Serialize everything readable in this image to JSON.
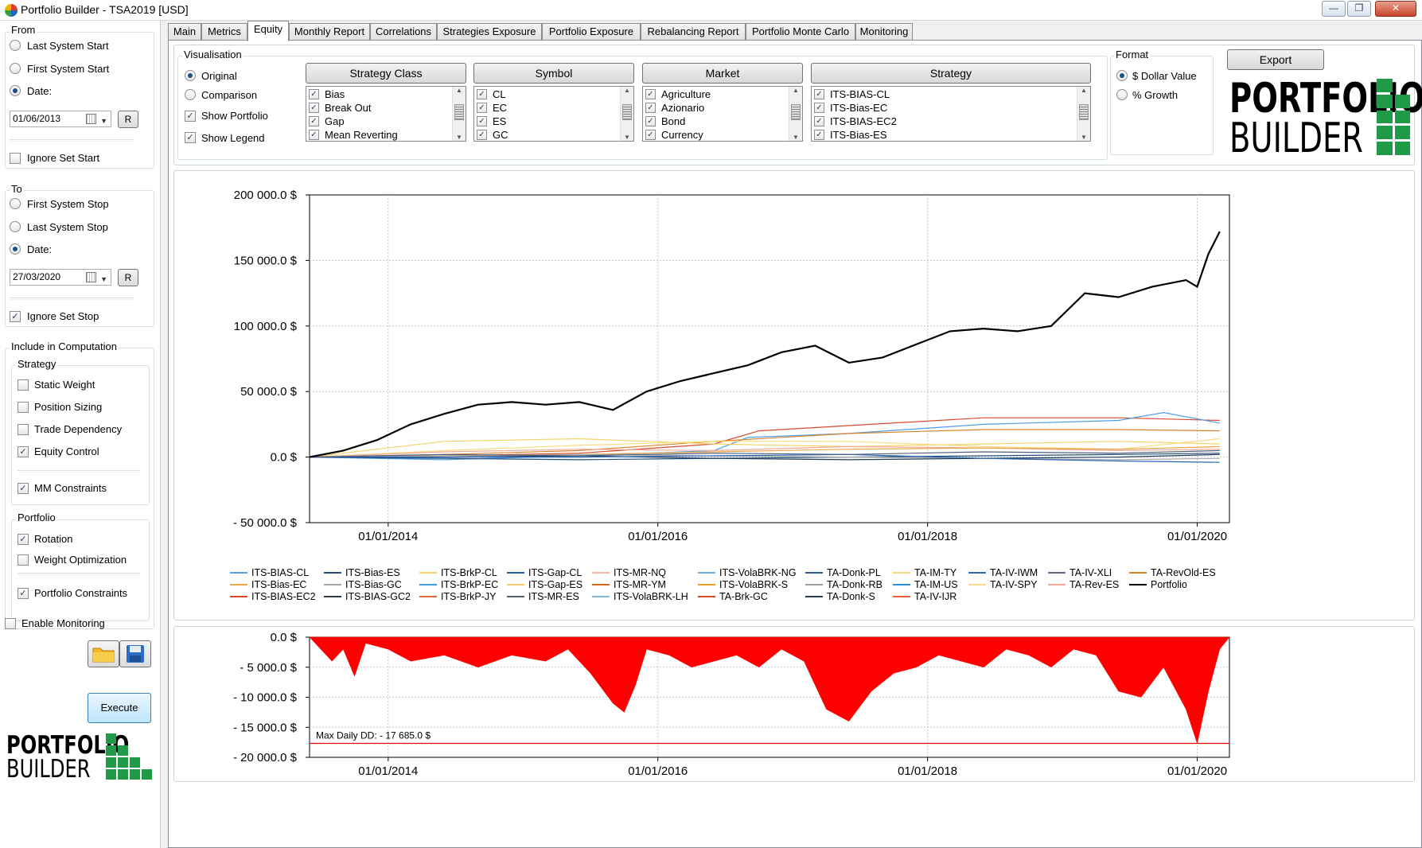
{
  "window": {
    "title": "Portfolio Builder - TSA2019 [USD]",
    "controls": {
      "minimize": "—",
      "maximize": "❐",
      "close": "✕"
    }
  },
  "tabs": [
    {
      "label": "Main"
    },
    {
      "label": "Metrics"
    },
    {
      "label": "Equity",
      "active": true
    },
    {
      "label": "Monthly Report"
    },
    {
      "label": "Correlations"
    },
    {
      "label": "Strategies Exposure"
    },
    {
      "label": "Portfolio Exposure"
    },
    {
      "label": "Rebalancing Report"
    },
    {
      "label": "Portfolio Monte Carlo"
    },
    {
      "label": "Monitoring"
    }
  ],
  "left": {
    "from": {
      "label": "From",
      "last_system_start": "Last System Start",
      "first_system_start": "First System Start",
      "date_label": "Date:",
      "date_value": "01/06/2013",
      "r_button": "R",
      "ignore_set_start": "Ignore Set Start"
    },
    "to": {
      "label": "To",
      "first_system_stop": "First System Stop",
      "last_system_stop": "Last System Stop",
      "date_label": "Date:",
      "date_value": "27/03/2020",
      "r_button": "R",
      "ignore_set_stop": "Ignore Set Stop"
    },
    "include": {
      "label": "Include in Computation",
      "strategy_label": "Strategy",
      "static_weight": "Static Weight",
      "position_sizing": "Position Sizing",
      "trade_dependency": "Trade Dependency",
      "equity_control": "Equity Control",
      "mm_constraints": "MM Constraints",
      "portfolio_label": "Portfolio",
      "rotation": "Rotation",
      "weight_optimization": "Weight Optimization",
      "portfolio_constraints": "Portfolio Constraints"
    },
    "enable_monitoring": "Enable Monitoring",
    "execute": "Execute"
  },
  "logo": {
    "line1": "PORTFOLIO",
    "line2": "BUILDER"
  },
  "visualisation": {
    "label": "Visualisation",
    "original": "Original",
    "comparison": "Comparison",
    "show_portfolio": "Show Portfolio",
    "show_legend": "Show Legend"
  },
  "filters": {
    "strategy_class": {
      "header": "Strategy Class",
      "items": [
        "Bias",
        "Break Out",
        "Gap",
        "Mean Reverting"
      ]
    },
    "symbol": {
      "header": "Symbol",
      "items": [
        "CL",
        "EC",
        "ES",
        "GC"
      ]
    },
    "market": {
      "header": "Market",
      "items": [
        "Agriculture",
        "Azionario",
        "Bond",
        "Currency"
      ]
    },
    "strategy": {
      "header": "Strategy",
      "items": [
        "ITS-BIAS-CL",
        "ITS-Bias-EC",
        "ITS-BIAS-EC2",
        "ITS-Bias-ES"
      ]
    }
  },
  "format": {
    "label": "Format",
    "dollar_value": "$ Dollar Value",
    "growth": "% Growth"
  },
  "export": "Export",
  "colors": {
    "portfolio": "#000000",
    "drawdown": "#ff0000",
    "accent_green": "#1f9b48"
  },
  "chart_data": [
    {
      "type": "line",
      "title": "",
      "xlabel": "",
      "ylabel": "",
      "x_ticks": [
        "01/01/2014",
        "01/01/2016",
        "01/01/2018",
        "01/01/2020"
      ],
      "y_ticks": [
        "200 000.0 $",
        "150 000.0 $",
        "100 000.0 $",
        "50 000.0 $",
        "0.0 $",
        "- 50 000.0 $"
      ],
      "ylim": [
        -50000,
        200000
      ],
      "xlim": [
        "2013-06-01",
        "2020-03-27"
      ],
      "grid": true,
      "legend_position": "bottom",
      "legend": [
        {
          "name": "ITS-BIAS-CL",
          "color": "#4f9de6"
        },
        {
          "name": "ITS-Bias-ES",
          "color": "#1f4e79"
        },
        {
          "name": "ITS-BrkP-CL",
          "color": "#f5d36a"
        },
        {
          "name": "ITS-Gap-CL",
          "color": "#1d5fa8"
        },
        {
          "name": "ITS-MR-NQ",
          "color": "#f2b8a2"
        },
        {
          "name": "ITS-VolaBRK-NG",
          "color": "#6aaee6"
        },
        {
          "name": "TA-Donk-PL",
          "color": "#285f9a"
        },
        {
          "name": "TA-IM-TY",
          "color": "#f7dc7c"
        },
        {
          "name": "TA-IV-IWM",
          "color": "#2b64b5"
        },
        {
          "name": "TA-IV-XLI",
          "color": "#5b6a88"
        },
        {
          "name": "TA-RevOld-ES",
          "color": "#d9822b"
        },
        {
          "name": "ITS-Bias-EC",
          "color": "#e6a64a"
        },
        {
          "name": "ITS-Bias-GC",
          "color": "#a6a6a6"
        },
        {
          "name": "ITS-BrkP-EC",
          "color": "#3aa0d8"
        },
        {
          "name": "ITS-Gap-ES",
          "color": "#f5c66a"
        },
        {
          "name": "ITS-MR-YM",
          "color": "#d66a1f"
        },
        {
          "name": "ITS-VolaBRK-S",
          "color": "#e0a020"
        },
        {
          "name": "TA-Donk-RB",
          "color": "#9aa0a8"
        },
        {
          "name": "TA-IM-US",
          "color": "#2e8fd6"
        },
        {
          "name": "TA-IV-SPY",
          "color": "#f7d98c"
        },
        {
          "name": "TA-Rev-ES",
          "color": "#f0a89a"
        },
        {
          "name": "Portfolio",
          "color": "#000000"
        },
        {
          "name": "ITS-BIAS-EC2",
          "color": "#d9492b"
        },
        {
          "name": "ITS-BIAS-GC2",
          "color": "#2a3a4a"
        },
        {
          "name": "ITS-BrkP-JY",
          "color": "#e06a3a"
        },
        {
          "name": "ITS-MR-ES",
          "color": "#50607a"
        },
        {
          "name": "ITS-VolaBRK-LH",
          "color": "#7ab8e6"
        },
        {
          "name": "TA-Brk-GC",
          "color": "#d84a20"
        },
        {
          "name": "TA-Donk-S",
          "color": "#1f3a5c"
        },
        {
          "name": "TA-IV-IJR",
          "color": "#e6603a"
        }
      ],
      "series": [
        {
          "name": "Portfolio",
          "color": "#000000",
          "width": 2.2,
          "x": [
            "2013-06",
            "2013-09",
            "2013-12",
            "2014-03",
            "2014-06",
            "2014-09",
            "2014-12",
            "2015-03",
            "2015-06",
            "2015-09",
            "2015-12",
            "2016-03",
            "2016-06",
            "2016-09",
            "2016-12",
            "2017-03",
            "2017-06",
            "2017-09",
            "2017-12",
            "2018-03",
            "2018-06",
            "2018-09",
            "2018-12",
            "2019-03",
            "2019-06",
            "2019-09",
            "2019-12",
            "2020-01",
            "2020-02",
            "2020-03"
          ],
          "values": [
            0,
            5000,
            13000,
            25000,
            33000,
            40000,
            42000,
            40000,
            42000,
            36000,
            50000,
            58000,
            64000,
            70000,
            80000,
            85000,
            72000,
            76000,
            86000,
            96000,
            98000,
            96000,
            100000,
            125000,
            122000,
            130000,
            135000,
            130000,
            155000,
            172000
          ]
        },
        {
          "name": "ITS-BIAS-EC2",
          "color": "#d9492b",
          "width": 1.2,
          "x": [
            "2013-06",
            "2014-06",
            "2015-06",
            "2016-06",
            "2016-10",
            "2017-06",
            "2018-06",
            "2019-06",
            "2020-03"
          ],
          "values": [
            0,
            1000,
            3000,
            10000,
            20000,
            24000,
            30000,
            30000,
            28000
          ]
        },
        {
          "name": "ITS-BIAS-CL",
          "color": "#4f9de6",
          "width": 1.2,
          "x": [
            "2013-06",
            "2014-06",
            "2015-06",
            "2016-06",
            "2016-09",
            "2017-06",
            "2018-06",
            "2019-06",
            "2019-10",
            "2020-03"
          ],
          "values": [
            0,
            -2000,
            1000,
            5000,
            15000,
            18000,
            25000,
            28000,
            34000,
            26000
          ]
        },
        {
          "name": "TA-RevOld-ES",
          "color": "#d9822b",
          "width": 1.2,
          "x": [
            "2013-06",
            "2014-06",
            "2015-06",
            "2016-06",
            "2017-06",
            "2018-06",
            "2019-06",
            "2020-03"
          ],
          "values": [
            0,
            2000,
            5000,
            12000,
            18000,
            21000,
            21000,
            20000
          ]
        },
        {
          "name": "ITS-BrkP-CL",
          "color": "#f5d36a",
          "width": 1.2,
          "x": [
            "2013-06",
            "2014-06",
            "2015-06",
            "2016-06",
            "2017-06",
            "2018-06",
            "2019-06",
            "2020-03"
          ],
          "values": [
            0,
            12000,
            14000,
            10000,
            8000,
            10000,
            12000,
            10000
          ]
        },
        {
          "name": "TA-IM-TY",
          "color": "#f7dc7c",
          "width": 1.2,
          "x": [
            "2013-06",
            "2014-06",
            "2015-06",
            "2016-06",
            "2017-06",
            "2018-06",
            "2019-06",
            "2020-03"
          ],
          "values": [
            0,
            5000,
            9000,
            12000,
            12000,
            8000,
            6000,
            14000
          ]
        },
        {
          "name": "TA-Rev-ES",
          "color": "#f0a89a",
          "width": 1.2,
          "x": [
            "2013-06",
            "2014-06",
            "2015-06",
            "2016-06",
            "2017-06",
            "2018-06",
            "2019-06",
            "2020-03"
          ],
          "values": [
            0,
            4000,
            6000,
            5000,
            8000,
            7000,
            5000,
            6000
          ]
        },
        {
          "name": "ITS-Bias-EC",
          "color": "#e6a64a",
          "width": 1.2,
          "x": [
            "2013-06",
            "2014-06",
            "2015-06",
            "2016-06",
            "2017-06",
            "2018-06",
            "2019-06",
            "2020-03"
          ],
          "values": [
            0,
            1000,
            2000,
            4000,
            6000,
            7000,
            6000,
            8000
          ]
        },
        {
          "name": "ITS-Bias-ES",
          "color": "#1f4e79",
          "width": 1.2,
          "x": [
            "2013-06",
            "2014-06",
            "2015-06",
            "2016-06",
            "2017-06",
            "2018-06",
            "2019-06",
            "2020-03"
          ],
          "values": [
            0,
            -1000,
            -2000,
            -1000,
            0,
            1000,
            2000,
            3000
          ]
        },
        {
          "name": "ITS-Bias-GC",
          "color": "#a6a6a6",
          "width": 1.2,
          "x": [
            "2013-06",
            "2014-06",
            "2015-06",
            "2016-06",
            "2017-06",
            "2018-06",
            "2019-06",
            "2020-03"
          ],
          "values": [
            0,
            1000,
            2000,
            1000,
            0,
            -1000,
            -2000,
            -1000
          ]
        },
        {
          "name": "TA-Donk-S",
          "color": "#1f3a5c",
          "width": 1.2,
          "x": [
            "2013-06",
            "2014-06",
            "2015-06",
            "2016-06",
            "2017-06",
            "2018-06",
            "2019-06",
            "2020-03"
          ],
          "values": [
            0,
            0,
            1000,
            -1000,
            -2000,
            -1000,
            0,
            2000
          ]
        },
        {
          "name": "TA-IV-IWM",
          "color": "#2b64b5",
          "width": 1.2,
          "x": [
            "2013-06",
            "2014-06",
            "2015-06",
            "2016-06",
            "2017-06",
            "2018-06",
            "2019-06",
            "2020-03"
          ],
          "values": [
            0,
            0,
            0,
            1000,
            2000,
            -1000,
            -3000,
            -4000
          ]
        },
        {
          "name": "ITS-MR-ES",
          "color": "#50607a",
          "width": 1.2,
          "x": [
            "2013-06",
            "2014-06",
            "2015-06",
            "2016-06",
            "2017-06",
            "2018-06",
            "2019-06",
            "2020-03"
          ],
          "values": [
            0,
            2000,
            1000,
            3000,
            2000,
            4000,
            3000,
            5000
          ]
        }
      ]
    },
    {
      "type": "area",
      "title": "",
      "x_ticks": [
        "01/01/2014",
        "01/01/2016",
        "01/01/2018",
        "01/01/2020"
      ],
      "y_ticks": [
        "0.0 $",
        "- 5 000.0 $",
        "- 10 000.0 $",
        "- 15 000.0 $",
        "- 20 000.0 $"
      ],
      "ylim": [
        -20000,
        0
      ],
      "grid": true,
      "annotation": "Max Daily DD: - 17 685.0 $",
      "max_dd": -17685,
      "series": [
        {
          "name": "Drawdown",
          "color": "#ff0000",
          "x": [
            "2013-06",
            "2013-08",
            "2013-09",
            "2013-10",
            "2013-11",
            "2014-01",
            "2014-03",
            "2014-06",
            "2014-09",
            "2014-12",
            "2015-03",
            "2015-05",
            "2015-07",
            "2015-09",
            "2015-10",
            "2015-11",
            "2015-12",
            "2016-02",
            "2016-04",
            "2016-06",
            "2016-08",
            "2016-10",
            "2016-12",
            "2017-02",
            "2017-04",
            "2017-06",
            "2017-08",
            "2017-10",
            "2017-12",
            "2018-02",
            "2018-04",
            "2018-06",
            "2018-08",
            "2018-10",
            "2018-12",
            "2019-02",
            "2019-04",
            "2019-06",
            "2019-08",
            "2019-10",
            "2019-12",
            "2020-01",
            "2020-02",
            "2020-03"
          ],
          "values": [
            0,
            -4000,
            -2000,
            -6500,
            -1000,
            -2000,
            -4000,
            -3000,
            -5000,
            -3000,
            -4000,
            -2000,
            -6000,
            -11000,
            -12500,
            -8000,
            -2000,
            -3000,
            -5000,
            -4000,
            -3000,
            -5000,
            -2000,
            -4000,
            -12000,
            -14000,
            -9000,
            -6000,
            -5000,
            -3000,
            -4000,
            -5000,
            -2000,
            -3000,
            -5000,
            -2000,
            -3000,
            -9000,
            -10000,
            -5000,
            -12000,
            -17685,
            -9000,
            -2000
          ]
        }
      ]
    }
  ]
}
